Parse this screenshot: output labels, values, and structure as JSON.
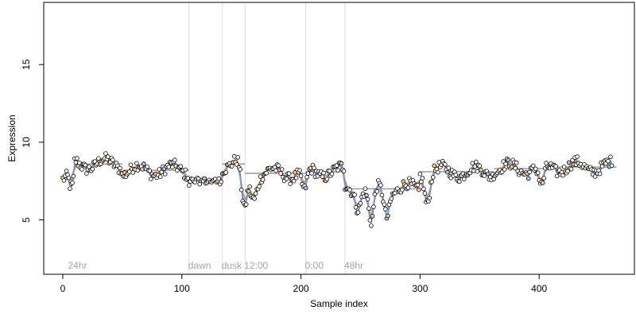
{
  "chart_data": {
    "type": "scatter",
    "xlabel": "Sample index",
    "ylabel": "Expression",
    "xlim": [
      -16,
      480
    ],
    "ylim": [
      1.5,
      19
    ],
    "x_ticks": [
      0,
      100,
      200,
      300,
      400
    ],
    "y_ticks": [
      5,
      10,
      15
    ],
    "grid": false,
    "colors": {
      "points": "#000000",
      "point_fill": "#ffffff",
      "trend_blue": "#6495ed",
      "trend_orange": "#f2a33a",
      "trend_gray": "#9a9a9a",
      "region_line": "#dcdcdc"
    },
    "regions": [
      {
        "x": 5,
        "label": "24hr"
      },
      {
        "x": 106,
        "label": "dawn"
      },
      {
        "x": 134,
        "label": "dusk"
      },
      {
        "x": 153,
        "label": "12:00"
      },
      {
        "x": 204,
        "label": "0:00"
      },
      {
        "x": 237,
        "label": "48hr"
      }
    ],
    "region_boundaries": [
      106,
      134,
      153,
      204,
      237
    ],
    "segments": [
      {
        "x0": 0,
        "x1": 10,
        "level": 7.6
      },
      {
        "x0": 10,
        "x1": 50,
        "level": 8.6
      },
      {
        "x0": 50,
        "x1": 106,
        "level": 8.2
      },
      {
        "x0": 106,
        "x1": 134,
        "level": 7.6
      },
      {
        "x0": 134,
        "x1": 153,
        "level": 8.6
      },
      {
        "x0": 153,
        "x1": 204,
        "level": 8.0
      },
      {
        "x0": 204,
        "x1": 237,
        "level": 8.1
      },
      {
        "x0": 237,
        "x1": 300,
        "level": 7.0
      },
      {
        "x0": 300,
        "x1": 362,
        "level": 8.1
      },
      {
        "x0": 362,
        "x1": 410,
        "level": 8.3
      },
      {
        "x0": 410,
        "x1": 465,
        "level": 8.4
      }
    ],
    "x_count": 462
  }
}
